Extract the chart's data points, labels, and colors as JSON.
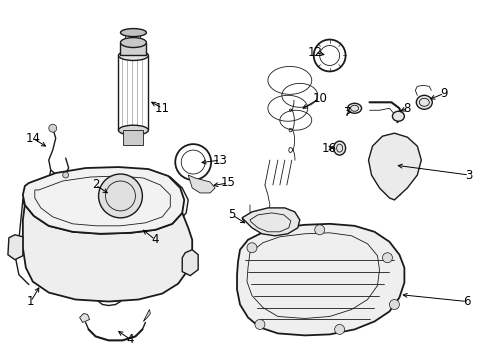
{
  "background_color": "#ffffff",
  "line_color": "#1a1a1a",
  "text_color": "#000000",
  "fig_width": 4.89,
  "fig_height": 3.6,
  "dpi": 100,
  "label_fontsize": 8.5
}
